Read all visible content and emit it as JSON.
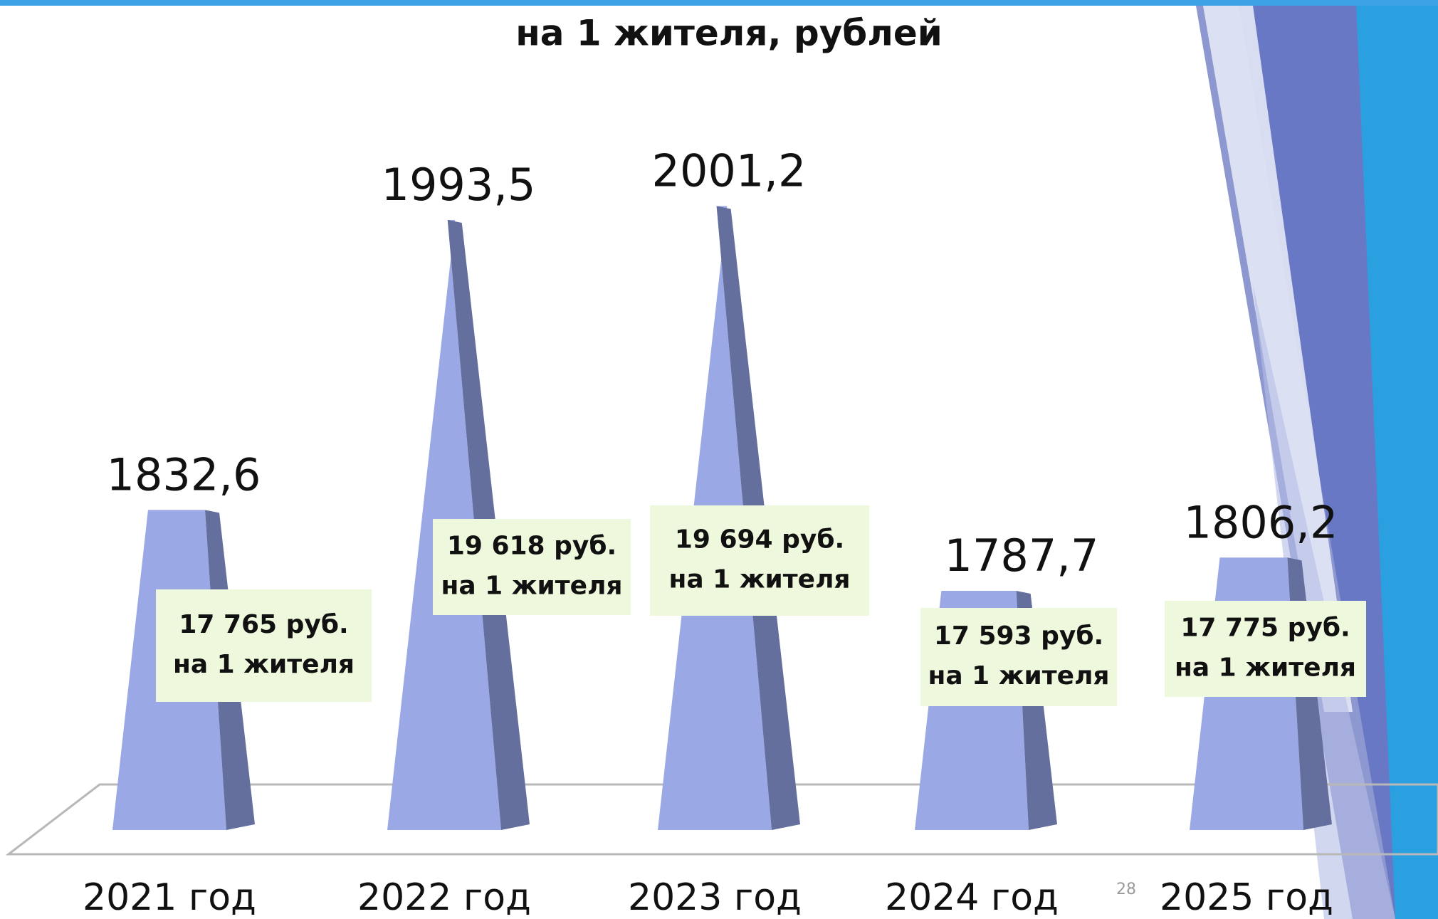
{
  "chart_data": {
    "type": "bar",
    "title": "на 1 жителя, рублей",
    "categories": [
      "2021 год",
      "2022 год",
      "2023 год",
      "2024 год",
      "2025 год"
    ],
    "values": [
      1832.6,
      1993.5,
      2001.2,
      1787.7,
      1806.2
    ],
    "value_labels": [
      "1832,6",
      "1993,5",
      "2001,2",
      "1787,7",
      "1806,2"
    ],
    "color": "#9aa8e6",
    "ylim": [
      1655,
      2050
    ],
    "annotations": [
      [
        "17 765 руб.",
        "на 1 жителя"
      ],
      [
        "19 618 руб.",
        "на 1 жителя"
      ],
      [
        "19 694 руб.",
        "на 1 жителя"
      ],
      [
        "17 593 руб.",
        "на 1 жителя"
      ],
      [
        "17 775 руб.",
        "на 1 жителя"
      ]
    ],
    "page_number": "28"
  }
}
